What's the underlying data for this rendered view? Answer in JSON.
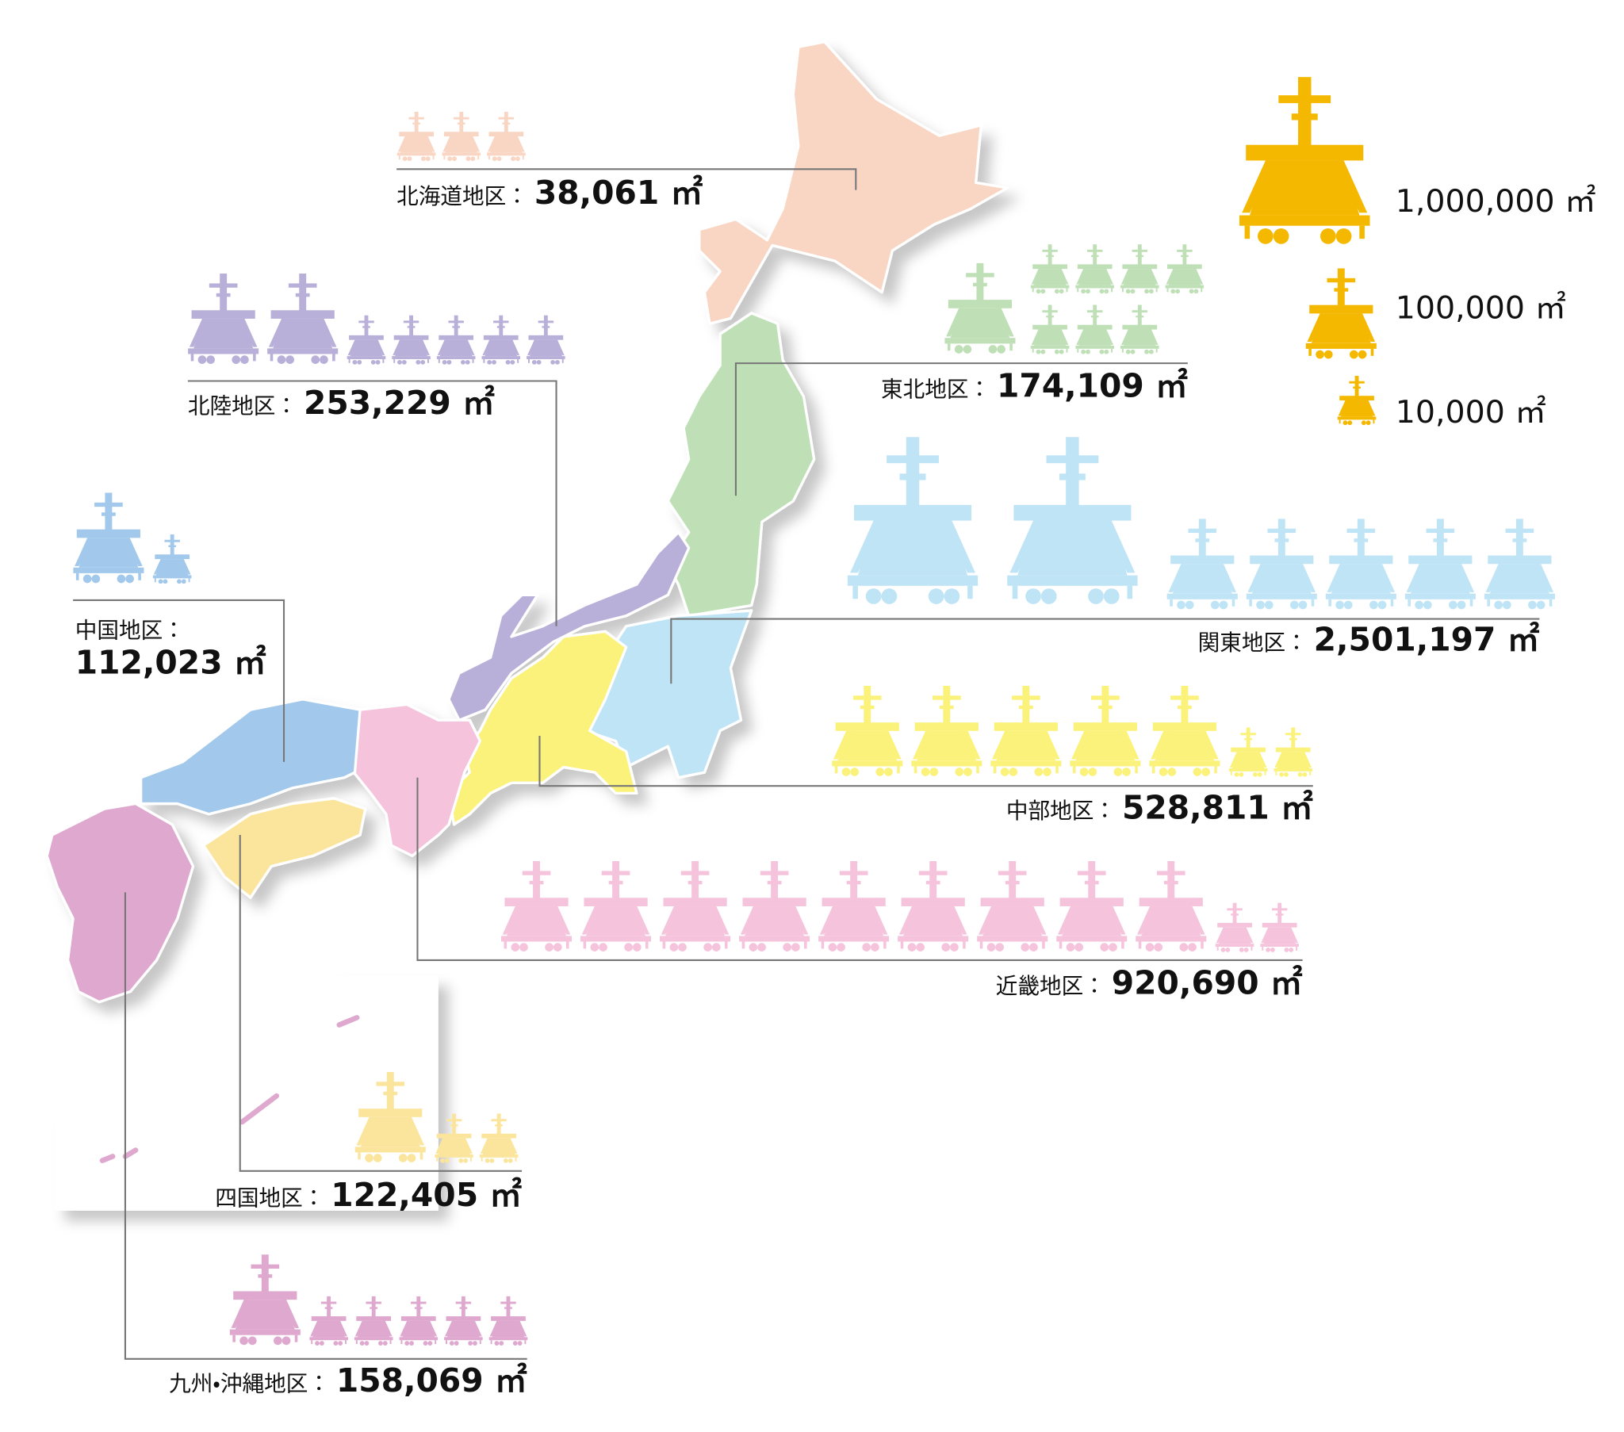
{
  "chart_data": {
    "type": "pictogram",
    "categories": [
      "北海道地区：",
      "東北地区：",
      "関東地区：",
      "中部地区：",
      "近畿地区：",
      "北陸地区：",
      "中国地区：",
      "四国地区：",
      "九州・沖縄地区："
    ],
    "values": [
      38061,
      174109,
      2501197,
      528811,
      920690,
      253229,
      112023,
      122405,
      158069
    ],
    "value_labels": [
      "38,061 ㎡",
      "174,109 ㎡",
      "2,501,197 ㎡",
      "528,811 ㎡",
      "920,690 ㎡",
      "253,229 ㎡",
      "112,023 ㎡",
      "122,405 ㎡",
      "158,069 ㎡"
    ],
    "colors": [
      "#f9d6c4",
      "#bfe0b6",
      "#bfe4f6",
      "#fbf27c",
      "#f5c4dc",
      "#b9b0d9",
      "#a2c9ec",
      "#fbe59d",
      "#dfa8cf"
    ],
    "legend": {
      "values": [
        1000000,
        100000,
        10000
      ],
      "labels": [
        "1,000,000 ㎡",
        "100,000 ㎡",
        "10,000 ㎡"
      ],
      "color": "#f5b800"
    }
  }
}
